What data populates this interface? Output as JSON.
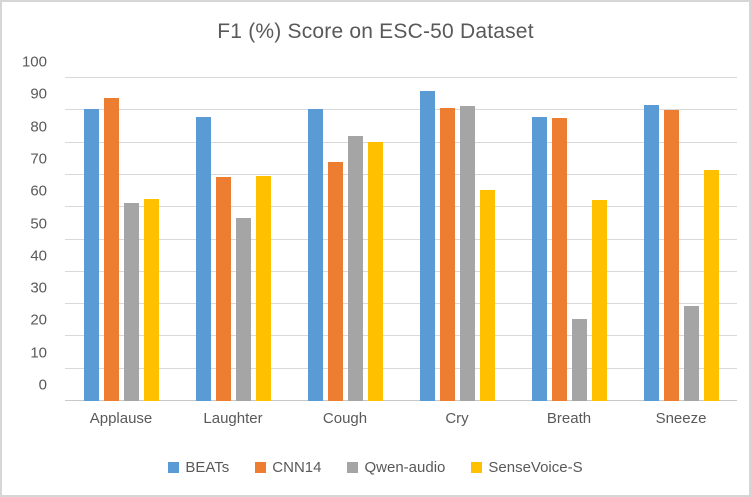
{
  "chart_data": {
    "type": "bar",
    "title": "F1 (%) Score on ESC-50 Dataset",
    "categories": [
      "Applause",
      "Laughter",
      "Cough",
      "Cry",
      "Breath",
      "Sneeze"
    ],
    "series": [
      {
        "name": "BEATs",
        "color": "#5B9BD5",
        "values": [
          90.4,
          88.0,
          90.3,
          96.0,
          88.0,
          91.5
        ]
      },
      {
        "name": "CNN14",
        "color": "#ED7D31",
        "values": [
          93.8,
          69.2,
          74.0,
          90.6,
          87.6,
          90.1
        ]
      },
      {
        "name": "Qwen-audio",
        "color": "#A5A5A5",
        "values": [
          61.2,
          56.8,
          82.2,
          91.3,
          25.4,
          29.4
        ]
      },
      {
        "name": "SenseVoice-S",
        "color": "#FFC000",
        "values": [
          62.6,
          69.6,
          80.1,
          65.3,
          62.2,
          71.6
        ]
      }
    ],
    "xlabel": "",
    "ylabel": "",
    "ylim": [
      0,
      100
    ],
    "y_ticks": [
      0,
      10,
      20,
      30,
      40,
      50,
      60,
      70,
      80,
      90,
      100
    ],
    "grid": true,
    "legend_position": "bottom",
    "colors": {
      "gridline": "#d9d9d9",
      "axis_text": "#595959",
      "title_text": "#595959",
      "frame_border": "#d6d6d6",
      "background": "#ffffff"
    }
  }
}
